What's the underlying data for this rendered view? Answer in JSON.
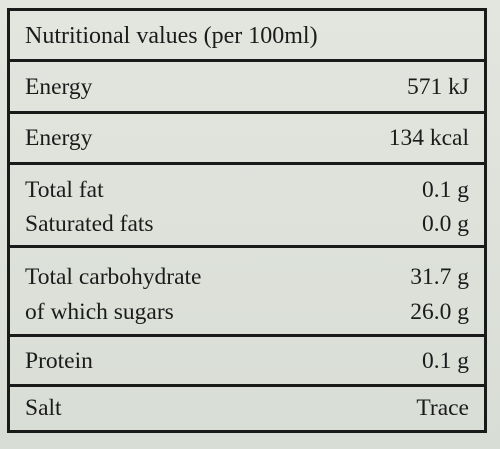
{
  "table": {
    "title": "Nutritional values (per 100ml)",
    "energy_kj": {
      "name": "Energy",
      "value": "571 kJ"
    },
    "energy_kcal": {
      "name": "Energy",
      "value": "134 kcal"
    },
    "total_fat": {
      "name": "Total fat",
      "value": "0.1 g"
    },
    "saturated_fats": {
      "name": "Saturated fats",
      "value": "0.0 g"
    },
    "total_carbohydrate": {
      "name": "Total carbohydrate",
      "value": "31.7 g"
    },
    "sugars": {
      "name": "of which sugars",
      "value": "26.0 g"
    },
    "protein": {
      "name": "Protein",
      "value": "0.1 g"
    },
    "salt": {
      "name": "Salt",
      "value": "Trace"
    }
  },
  "colors": {
    "background": "#dfe3dc",
    "ink": "#1b1b1b"
  }
}
